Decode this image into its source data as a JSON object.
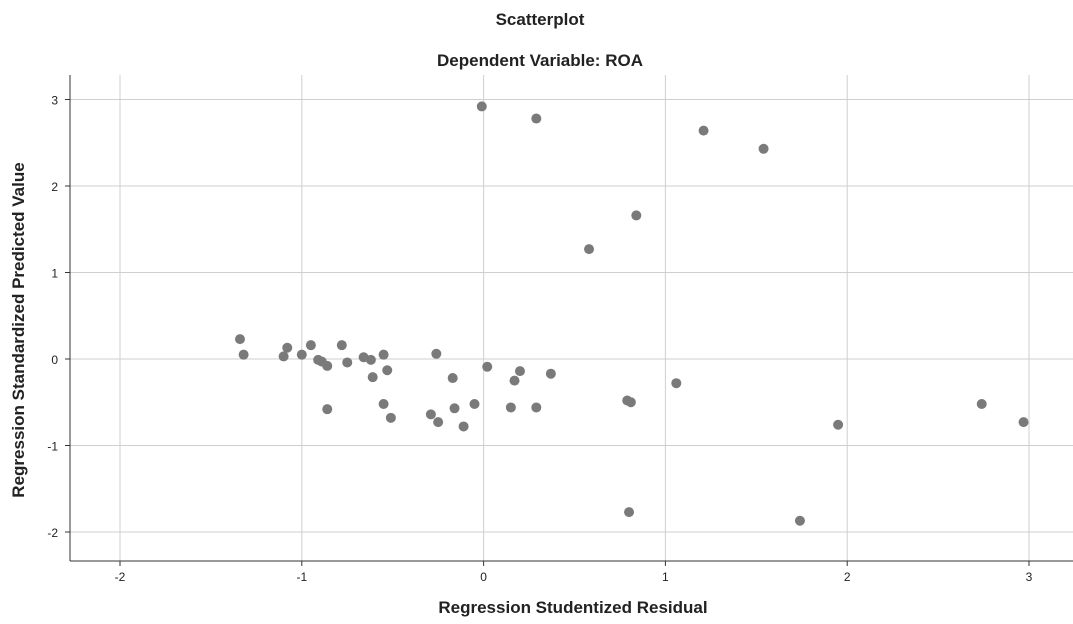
{
  "chart_data": {
    "type": "scatter",
    "title": "Scatterplot",
    "subtitle": "Dependent Variable: ROA",
    "xlabel": "Regression Studentized Residual",
    "ylabel": "Regression Standardized Predicted Value",
    "xlim": [
      -2.3,
      3.15
    ],
    "ylim": [
      -2.3,
      3.3
    ],
    "xticks": [
      -2,
      -1,
      0,
      1,
      2,
      3
    ],
    "yticks": [
      -2,
      -1,
      0,
      1,
      2,
      3
    ],
    "grid": true,
    "marker_color": "#7a7a7a",
    "points": [
      {
        "x": -0.01,
        "y": 2.92
      },
      {
        "x": 0.29,
        "y": 2.78
      },
      {
        "x": 1.21,
        "y": 2.64
      },
      {
        "x": 1.54,
        "y": 2.43
      },
      {
        "x": 0.84,
        "y": 1.66
      },
      {
        "x": 0.58,
        "y": 1.27
      },
      {
        "x": -1.34,
        "y": 0.23
      },
      {
        "x": -1.32,
        "y": 0.05
      },
      {
        "x": -1.1,
        "y": 0.03
      },
      {
        "x": -1.08,
        "y": 0.13
      },
      {
        "x": -1.0,
        "y": 0.05
      },
      {
        "x": -0.95,
        "y": 0.16
      },
      {
        "x": -0.91,
        "y": -0.01
      },
      {
        "x": -0.89,
        "y": -0.03
      },
      {
        "x": -0.86,
        "y": -0.08
      },
      {
        "x": -0.78,
        "y": 0.16
      },
      {
        "x": -0.75,
        "y": -0.04
      },
      {
        "x": -0.66,
        "y": 0.02
      },
      {
        "x": -0.62,
        "y": -0.01
      },
      {
        "x": -0.61,
        "y": -0.21
      },
      {
        "x": -0.55,
        "y": 0.05
      },
      {
        "x": -0.53,
        "y": -0.13
      },
      {
        "x": -0.55,
        "y": -0.52
      },
      {
        "x": -0.51,
        "y": -0.68
      },
      {
        "x": -0.86,
        "y": -0.58
      },
      {
        "x": -0.26,
        "y": 0.06
      },
      {
        "x": -0.29,
        "y": -0.64
      },
      {
        "x": -0.25,
        "y": -0.73
      },
      {
        "x": -0.17,
        "y": -0.22
      },
      {
        "x": -0.16,
        "y": -0.57
      },
      {
        "x": -0.11,
        "y": -0.78
      },
      {
        "x": -0.05,
        "y": -0.52
      },
      {
        "x": 0.02,
        "y": -0.09
      },
      {
        "x": 0.15,
        "y": -0.56
      },
      {
        "x": 0.17,
        "y": -0.25
      },
      {
        "x": 0.2,
        "y": -0.14
      },
      {
        "x": 0.29,
        "y": -0.56
      },
      {
        "x": 0.37,
        "y": -0.17
      },
      {
        "x": 0.79,
        "y": -0.48
      },
      {
        "x": 0.81,
        "y": -0.5
      },
      {
        "x": 1.06,
        "y": -0.28
      },
      {
        "x": 0.8,
        "y": -1.77
      },
      {
        "x": 1.74,
        "y": -1.87
      },
      {
        "x": 1.95,
        "y": -0.76
      },
      {
        "x": 2.74,
        "y": -0.52
      },
      {
        "x": 2.97,
        "y": -0.73
      }
    ]
  }
}
